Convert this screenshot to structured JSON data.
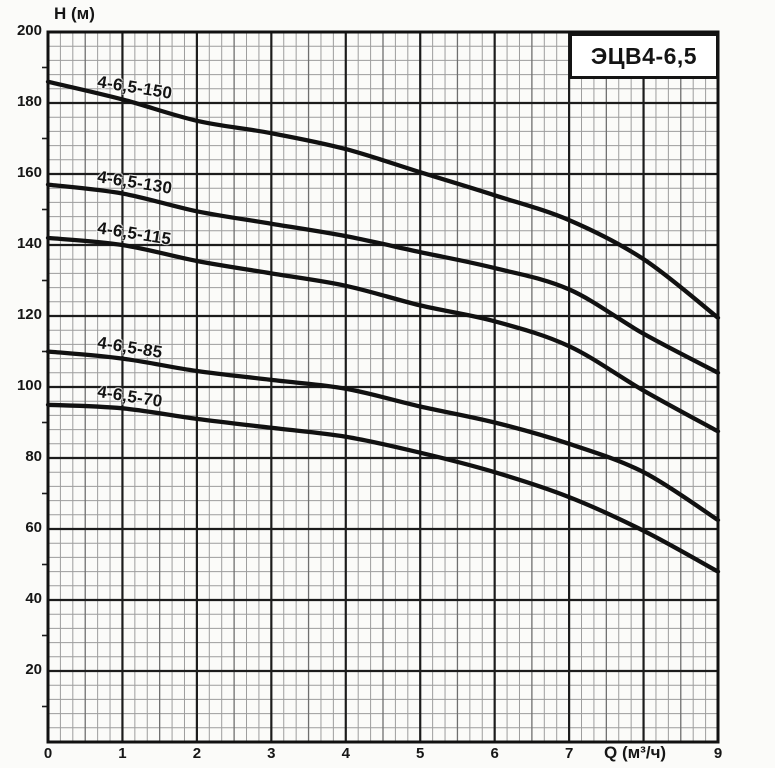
{
  "title_box": {
    "label": "ЭЦВ4-6,5"
  },
  "axes": {
    "y_title": "Н (м)",
    "x_title": "Q (м³/ч)",
    "y_tick_labels": [
      "200",
      "180",
      "160",
      "140",
      "120",
      "100",
      "80",
      "60",
      "40",
      "20"
    ],
    "x_tick_labels": [
      "0",
      "1",
      "2",
      "3",
      "4",
      "5",
      "6",
      "7",
      "",
      "9"
    ]
  },
  "chart_data": {
    "type": "line",
    "title": "ЭЦВ4-6,5",
    "xlabel": "Q (м³/ч)",
    "ylabel": "Н (м)",
    "xlim": [
      0,
      9
    ],
    "ylim": [
      0,
      200
    ],
    "x_ticks": [
      0,
      1,
      2,
      3,
      4,
      5,
      6,
      7,
      8,
      9
    ],
    "y_ticks": [
      20,
      40,
      60,
      80,
      100,
      120,
      140,
      160,
      180,
      200
    ],
    "grid": true,
    "legend_position": "labels-on-curves",
    "line_color": "#111111",
    "x": [
      0,
      1,
      2,
      3,
      4,
      5,
      6,
      7,
      8,
      9
    ],
    "series": [
      {
        "name": "4-6,5-150",
        "values": [
          186,
          181,
          175,
          171.5,
          167,
          160.5,
          154,
          147,
          136,
          119.5
        ]
      },
      {
        "name": "4-6,5-130",
        "values": [
          157,
          154.5,
          149.5,
          146,
          142.5,
          138,
          133.5,
          127.5,
          115,
          104
        ]
      },
      {
        "name": "4-6,5-115",
        "values": [
          142,
          140,
          135.5,
          132,
          128.5,
          123,
          118.5,
          111.5,
          99,
          87.5
        ]
      },
      {
        "name": "4-6,5-85",
        "values": [
          110,
          108,
          104.5,
          102,
          99.5,
          94.5,
          90,
          84,
          76,
          62.5
        ]
      },
      {
        "name": "4-6,5-70",
        "values": [
          95,
          94,
          91,
          88.5,
          86,
          81.5,
          76,
          69,
          59.5,
          48
        ]
      }
    ]
  }
}
